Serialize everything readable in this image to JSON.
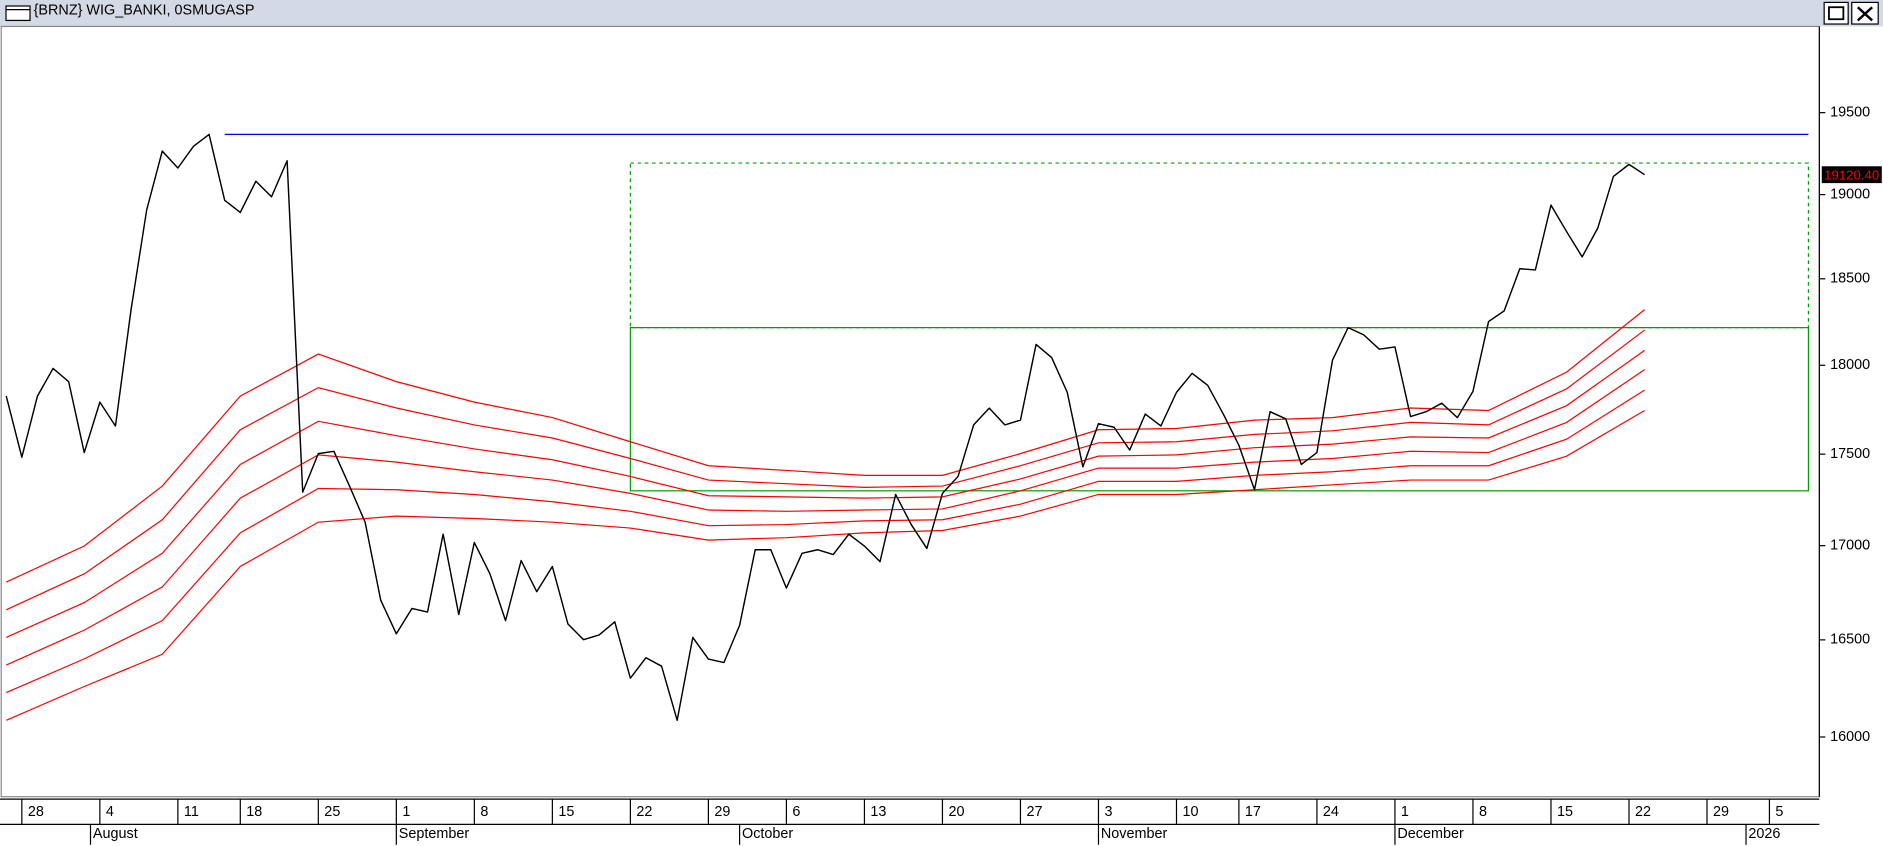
{
  "chart_data": {
    "type": "line",
    "title": "{BRNZ} WIG_BANKI, 0SMUGASP",
    "scale": "log",
    "grid": false,
    "xlim": [
      -1.4,
      115.2
    ],
    "ylim": [
      15700,
      20040
    ],
    "yticks": [
      16000,
      16500,
      17000,
      17500,
      18000,
      18500,
      19000,
      19500
    ],
    "xticks": [
      {
        "value": 0,
        "label": "28"
      },
      {
        "value": 5,
        "label": "4"
      },
      {
        "value": 10,
        "label": "11"
      },
      {
        "value": 14,
        "label": "18"
      },
      {
        "value": 19,
        "label": "25"
      },
      {
        "value": 24,
        "label": "1"
      },
      {
        "value": 29,
        "label": "8"
      },
      {
        "value": 34,
        "label": "15"
      },
      {
        "value": 39,
        "label": "22"
      },
      {
        "value": 44,
        "label": "29"
      },
      {
        "value": 49,
        "label": "6"
      },
      {
        "value": 54,
        "label": "13"
      },
      {
        "value": 59,
        "label": "20"
      },
      {
        "value": 64,
        "label": "27"
      },
      {
        "value": 69,
        "label": "3"
      },
      {
        "value": 74,
        "label": "10"
      },
      {
        "value": 78,
        "label": "17"
      },
      {
        "value": 83,
        "label": "24"
      },
      {
        "value": 88,
        "label": "1"
      },
      {
        "value": 93,
        "label": "8"
      },
      {
        "value": 98,
        "label": "15"
      },
      {
        "value": 103,
        "label": "22"
      },
      {
        "value": 108,
        "label": "29"
      },
      {
        "value": 112,
        "label": "5"
      }
    ],
    "xmonths": [
      {
        "value": 4.4,
        "label": "August"
      },
      {
        "value": 24,
        "label": "September"
      },
      {
        "value": 46,
        "label": "October"
      },
      {
        "value": 69,
        "label": "November"
      },
      {
        "value": 88,
        "label": "December"
      },
      {
        "value": 110.5,
        "label": "2026"
      }
    ],
    "x": [
      -1,
      0,
      1,
      2,
      3,
      4,
      5,
      6,
      7,
      8,
      9,
      10,
      11,
      12,
      13,
      14,
      15,
      16,
      17,
      18,
      19,
      20,
      21,
      22,
      23,
      24,
      25,
      26,
      27,
      28,
      29,
      30,
      31,
      32,
      33,
      34,
      35,
      36,
      37,
      38,
      39,
      40,
      41,
      42,
      43,
      44,
      45,
      46,
      47,
      48,
      49,
      50,
      51,
      52,
      53,
      54,
      55,
      56,
      57,
      58,
      59,
      60,
      61,
      62,
      63,
      64,
      65,
      66,
      67,
      68,
      69,
      70,
      71,
      72,
      73,
      74,
      75,
      76,
      77,
      78,
      79,
      80,
      81,
      82,
      83,
      84,
      85,
      86,
      87,
      88,
      89,
      90,
      91,
      92,
      93,
      94,
      95,
      96,
      97,
      98,
      99,
      100,
      101,
      102,
      103,
      104
    ],
    "series": [
      {
        "color": "#000000",
        "values": [
          17825,
          17483,
          17825,
          17982,
          17907,
          17509,
          17791,
          17657,
          18320,
          18908,
          19264,
          19161,
          19293,
          19366,
          18966,
          18893,
          19081,
          18987,
          19205,
          17291,
          17503,
          17516,
          17324,
          17127,
          16709,
          16532,
          16665,
          16646,
          17062,
          16633,
          17017,
          16849,
          16601,
          16920,
          16754,
          16888,
          16583,
          16501,
          16526,
          16595,
          16301,
          16407,
          16363,
          16085,
          16513,
          16400,
          16382,
          16576,
          16978,
          16978,
          16773,
          16959,
          16978,
          16952,
          17062,
          16998,
          16914,
          17278,
          17114,
          16985,
          17284,
          17377,
          17663,
          17757,
          17663,
          17690,
          18119,
          18044,
          17846,
          17430,
          17670,
          17650,
          17523,
          17724,
          17657,
          17846,
          17954,
          17886,
          17724,
          17549,
          17304,
          17737,
          17697,
          17443,
          17509,
          18030,
          18216,
          18174,
          18092,
          18105,
          17710,
          17737,
          17785,
          17704,
          17852,
          18251,
          18313,
          18559,
          18552,
          18937,
          18779,
          18629,
          18800,
          19110,
          19183,
          19120.4
        ]
      }
    ],
    "price_marker": {
      "value": 19120.4,
      "label": "19120.40",
      "color": "#ff0000"
    },
    "ribbon": {
      "color": "#ff0000",
      "x": [
        -1,
        4,
        9,
        14,
        19,
        24,
        29,
        34,
        39,
        44,
        49,
        54,
        59,
        64,
        69,
        74,
        79,
        84,
        89,
        94,
        99,
        104
      ],
      "lines": [
        [
          16805,
          16998,
          17324,
          17825,
          18064,
          17907,
          17791,
          17704,
          17569,
          17436,
          17410,
          17383,
          17383,
          17503,
          17636,
          17643,
          17690,
          17704,
          17758,
          17744,
          17961,
          18320
        ],
        [
          16658,
          16849,
          17140,
          17636,
          17873,
          17758,
          17663,
          17590,
          17476,
          17357,
          17337,
          17317,
          17324,
          17436,
          17563,
          17569,
          17610,
          17630,
          17677,
          17663,
          17866,
          18202
        ],
        [
          16513,
          16696,
          16959,
          17443,
          17683,
          17603,
          17529,
          17469,
          17377,
          17271,
          17265,
          17258,
          17265,
          17363,
          17489,
          17496,
          17536,
          17556,
          17596,
          17590,
          17771,
          18085
        ],
        [
          16369,
          16551,
          16779,
          17258,
          17496,
          17456,
          17403,
          17357,
          17284,
          17193,
          17186,
          17193,
          17199,
          17298,
          17423,
          17423,
          17456,
          17476,
          17516,
          17509,
          17677,
          17975
        ],
        [
          16227,
          16401,
          16601,
          17069,
          17311,
          17304,
          17278,
          17238,
          17186,
          17108,
          17114,
          17134,
          17140,
          17225,
          17350,
          17350,
          17383,
          17403,
          17436,
          17436,
          17583,
          17859
        ],
        [
          16085,
          16258,
          16425,
          16888,
          17127,
          17160,
          17147,
          17127,
          17095,
          17030,
          17043,
          17069,
          17082,
          17160,
          17278,
          17278,
          17304,
          17331,
          17357,
          17357,
          17489,
          17744
        ]
      ]
    },
    "hline": {
      "value": 19366,
      "x": [
        13,
        114.5
      ],
      "color": "#0000ff"
    },
    "boxes": [
      {
        "x": [
          39,
          114.5
        ],
        "y": [
          17298,
          18216
        ],
        "style": "solid",
        "color": "#00a000"
      },
      {
        "x": [
          39,
          114.5
        ],
        "y": [
          18216,
          19191
        ],
        "style": "dashed",
        "color": "#00a000"
      }
    ]
  }
}
